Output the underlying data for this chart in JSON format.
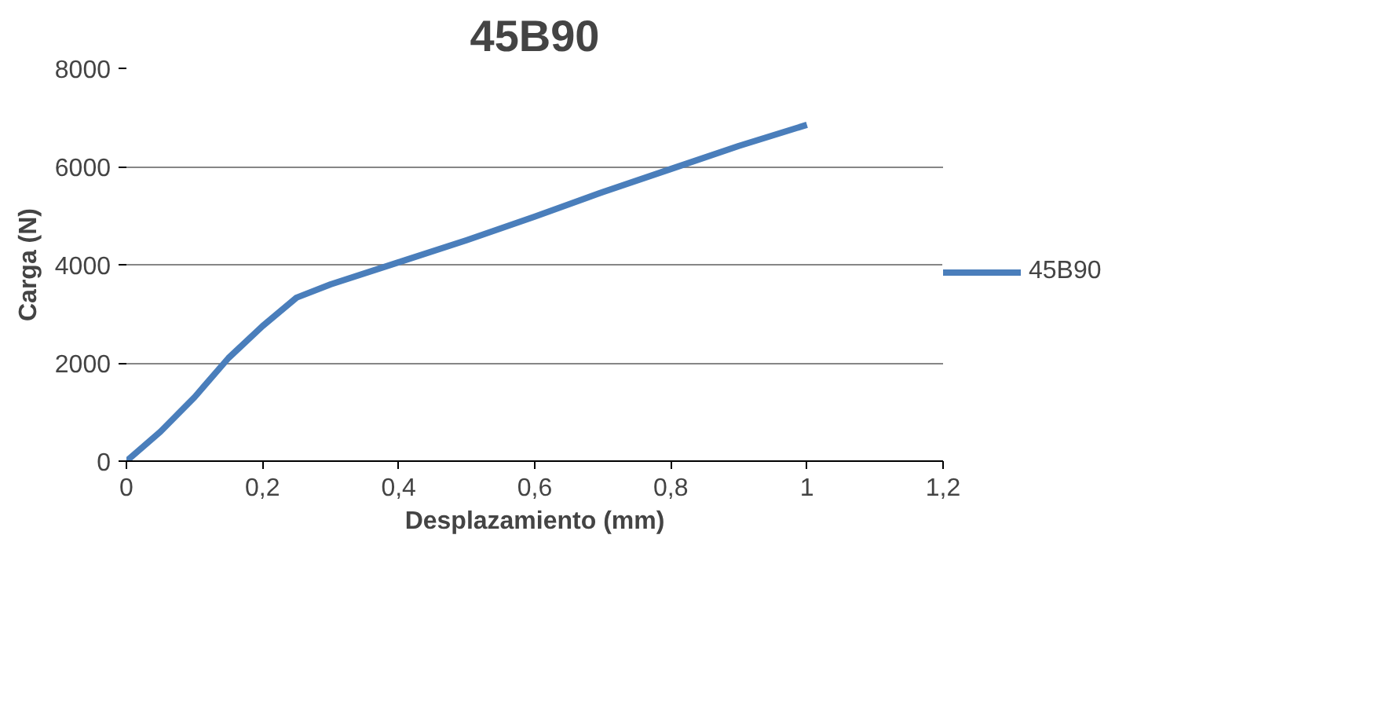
{
  "chart_data": {
    "type": "line",
    "title": "45B90",
    "xlabel": "Desplazamiento (mm)",
    "ylabel": "Carga (N)",
    "series": [
      {
        "name": "45B90",
        "color": "#4a7ebb",
        "x": [
          0,
          0.05,
          0.1,
          0.15,
          0.2,
          0.25,
          0.3,
          0.4,
          0.5,
          0.6,
          0.7,
          0.8,
          0.9,
          1.0
        ],
        "values": [
          0,
          600,
          1300,
          2100,
          2750,
          3330,
          3600,
          4050,
          4500,
          4980,
          5480,
          5950,
          6420,
          6850
        ]
      }
    ],
    "xlim": [
      0,
      1.2
    ],
    "xticks": [
      {
        "value": 0,
        "label": "0"
      },
      {
        "value": 0.2,
        "label": "0,2"
      },
      {
        "value": 0.4,
        "label": "0,4"
      },
      {
        "value": 0.6,
        "label": "0,6"
      },
      {
        "value": 0.8,
        "label": "0,8"
      },
      {
        "value": 1,
        "label": "1"
      },
      {
        "value": 1.2,
        "label": "1,2"
      }
    ],
    "ylim": [
      0,
      8000
    ],
    "yticks": [
      0,
      2000,
      4000,
      6000,
      8000
    ],
    "grid": "y",
    "legend": "right",
    "marker": "none",
    "line_style": "solid"
  }
}
